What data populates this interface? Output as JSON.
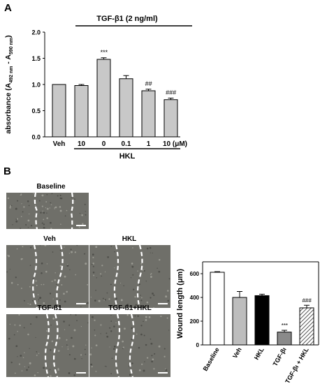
{
  "panel_a": {
    "letter": "A",
    "treatment_label": "TGF-β1 (2 ng/ml)"
  },
  "panel_b": {
    "letter": "B",
    "micrographs": [
      {
        "label": "Baseline"
      },
      {
        "label": "Veh"
      },
      {
        "label": "HKL"
      },
      {
        "label": "TGF-ß1"
      },
      {
        "label": "TGF-ß1+HKL"
      }
    ]
  },
  "chart_data": [
    {
      "type": "bar",
      "categories": [
        "Veh",
        "10",
        "0",
        "0.1",
        "1",
        "10 (μM)"
      ],
      "values": [
        1.0,
        0.98,
        1.48,
        1.11,
        0.88,
        0.71
      ],
      "errors": [
        0.0,
        0.02,
        0.03,
        0.06,
        0.03,
        0.03
      ],
      "annotations": [
        "",
        "",
        "***",
        "",
        "##",
        "###"
      ],
      "ylabel_parts": {
        "prefix": "absorbance (A",
        "sub1": "492 nm",
        "mid": " - A",
        "sub2": "590 nm",
        "suffix": ")"
      },
      "xgroup_label": "HKL",
      "ylim": [
        0.0,
        2.0
      ],
      "yticks": [
        "0.0",
        "0.5",
        "1.0",
        "1.5",
        "2.0"
      ],
      "colors": {
        "bar": "#c8c8c8",
        "edge": "#000000"
      }
    },
    {
      "type": "bar",
      "categories": [
        "Baseline",
        "Veh",
        "HKL",
        "TGF-βι",
        "TGF-βι + HKL"
      ],
      "values": [
        612,
        400,
        415,
        108,
        312
      ],
      "errors": [
        5,
        50,
        12,
        15,
        22
      ],
      "annotations": [
        "",
        "",
        "",
        "***",
        "###"
      ],
      "ylabel_parts": {
        "prefix": "Wound length (",
        "mu": "μ",
        "suffix": "m)"
      },
      "ylim": [
        0,
        700
      ],
      "yticks": [
        "0",
        "200",
        "400",
        "600"
      ],
      "fills": [
        "#ffffff",
        "#bdbdbd",
        "#000000",
        "#8a8a8a",
        "hatch"
      ]
    }
  ]
}
